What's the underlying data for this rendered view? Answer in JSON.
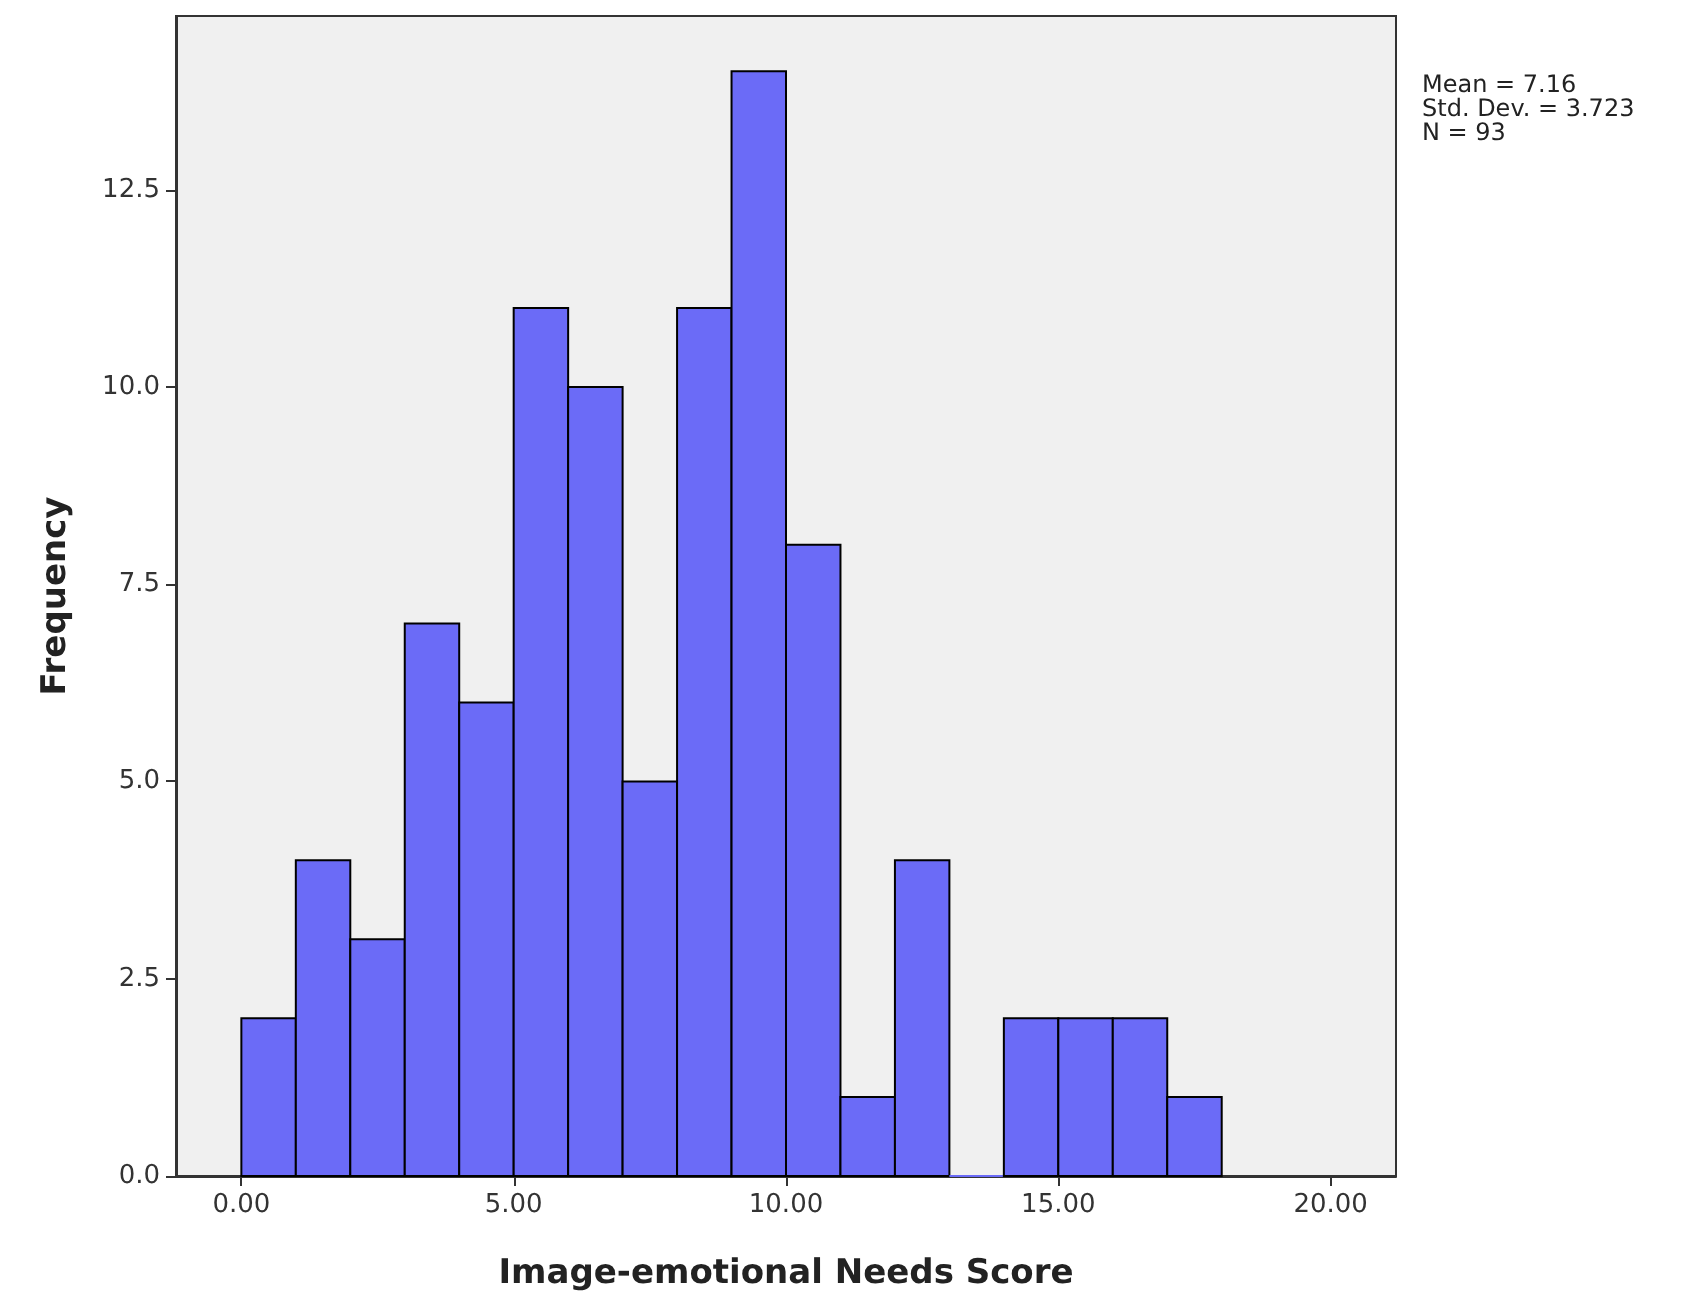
{
  "chart_data": {
    "type": "histogram",
    "xlabel": "Image-emotional Needs Score",
    "ylabel": "Frequency",
    "bins": [
      0,
      1,
      2,
      3,
      4,
      5,
      6,
      7,
      8,
      9,
      10,
      11,
      12,
      13,
      14,
      15,
      16,
      17,
      18
    ],
    "values": [
      2,
      4,
      3,
      7,
      6,
      11,
      10,
      5,
      11,
      14,
      8,
      1,
      4,
      0,
      2,
      2,
      2,
      1
    ],
    "color": "#6b6bf7",
    "xlim": [
      -1.2,
      21.2
    ],
    "xticks": [
      {
        "value": 0,
        "label": "0.00"
      },
      {
        "value": 5,
        "label": "5.00"
      },
      {
        "value": 10,
        "label": "10.00"
      },
      {
        "value": 15,
        "label": "15.00"
      },
      {
        "value": 20,
        "label": "20.00"
      }
    ],
    "ylim": [
      0,
      14.7
    ],
    "yticks": [
      {
        "value": 0,
        "label": "0.0"
      },
      {
        "value": 2.5,
        "label": "2.5"
      },
      {
        "value": 5,
        "label": "5.0"
      },
      {
        "value": 7.5,
        "label": "7.5"
      },
      {
        "value": 10,
        "label": "10.0"
      },
      {
        "value": 12.5,
        "label": "12.5"
      }
    ],
    "annotations": [
      "Mean = 7.16",
      "Std. Dev. = 3.723",
      "N = 93"
    ],
    "grid": false
  }
}
